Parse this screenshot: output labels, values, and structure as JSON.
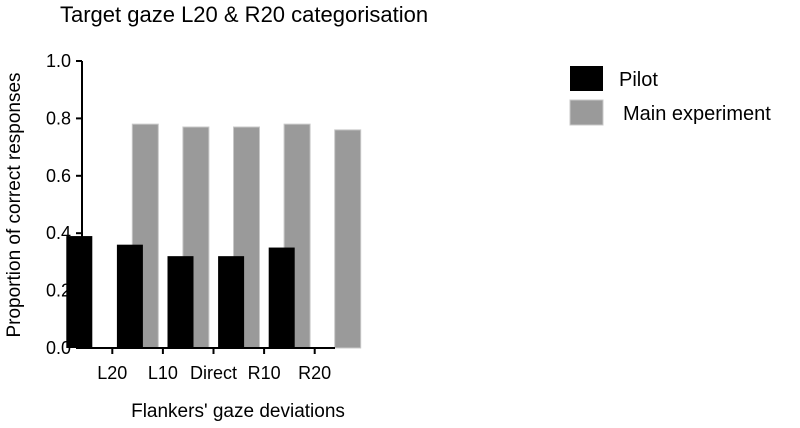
{
  "chart_data": {
    "type": "bar",
    "title": "Target gaze L20 & R20 categorisation",
    "xlabel": "Flankers' gaze deviations",
    "ylabel": "Proportion of correct responses",
    "categories": [
      "L20",
      "L10",
      "Direct",
      "R10",
      "R20"
    ],
    "series": [
      {
        "name": "Pilot",
        "color": "#000000",
        "values": [
          0.39,
          0.36,
          0.32,
          0.32,
          0.35
        ]
      },
      {
        "name": "Main experiment",
        "color": "#9a9a9a",
        "values": [
          0.78,
          0.77,
          0.77,
          0.78,
          0.76
        ]
      }
    ],
    "ylim": [
      0,
      1.0
    ],
    "yticks": [
      "0.0",
      "0.2",
      "0.4",
      "0.6",
      "0.8",
      "1.0"
    ],
    "grid": false,
    "legend_position": "top-right"
  }
}
